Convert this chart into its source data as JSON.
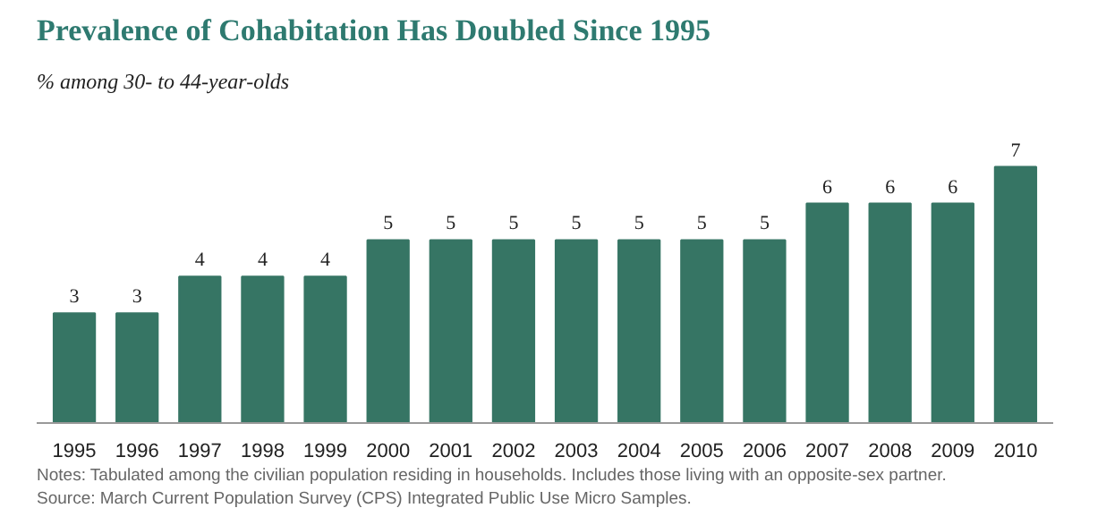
{
  "chart_data": {
    "type": "bar",
    "title": "Prevalence of Cohabitation Has Doubled Since 1995",
    "subtitle": "% among 30- to 44-year-olds",
    "categories": [
      "1995",
      "1996",
      "1997",
      "1998",
      "1999",
      "2000",
      "2001",
      "2002",
      "2003",
      "2004",
      "2005",
      "2006",
      "2007",
      "2008",
      "2009",
      "2010"
    ],
    "values": [
      3,
      3,
      4,
      4,
      4,
      5,
      5,
      5,
      5,
      5,
      5,
      5,
      6,
      6,
      6,
      7
    ],
    "color": "#367564",
    "data_labels": true,
    "grid": false,
    "annotations": [
      "Notes: Tabulated among the civilian population residing in households. Includes those living with an opposite-sex partner.",
      "Source: March Current Population Survey (CPS) Integrated Public Use Micro Samples."
    ]
  }
}
